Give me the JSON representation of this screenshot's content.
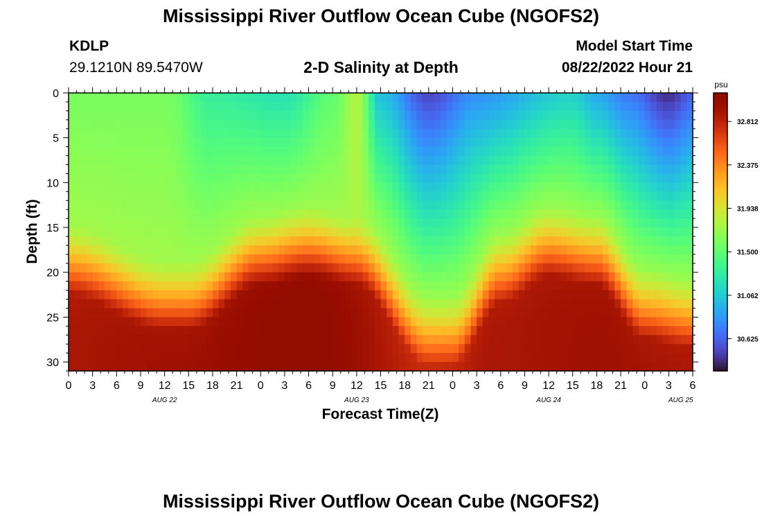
{
  "header": {
    "title": "Mississippi River Outflow Ocean Cube (NGOFS2)",
    "station": "KDLP",
    "coords": "29.1210N  89.5470W",
    "subtitle": "2-D Salinity at Depth",
    "model_start_label": "Model Start Time",
    "model_start_value": "08/22/2022 Hour 21"
  },
  "footer": {
    "title": "Mississippi River Outflow Ocean Cube (NGOFS2)"
  },
  "chart_data": {
    "type": "heatmap",
    "title": "2-D Salinity at Depth",
    "xlabel": "Forecast Time(Z)",
    "ylabel": "Depth (ft)",
    "x_tick_labels": [
      "0",
      "3",
      "6",
      "9",
      "12",
      "15",
      "18",
      "21",
      "0",
      "3",
      "6",
      "9",
      "12",
      "15",
      "18",
      "21",
      "0",
      "3",
      "6",
      "9",
      "12",
      "15",
      "18",
      "21",
      "0",
      "3",
      "6"
    ],
    "x_range_hours": [
      0,
      78
    ],
    "date_labels": [
      {
        "label": "AUG 22",
        "hour": 12
      },
      {
        "label": "AUG 23",
        "hour": 36
      },
      {
        "label": "AUG 24",
        "hour": 60
      },
      {
        "label": "AUG 25",
        "hour": 76.5
      }
    ],
    "y_ticks": [
      0,
      5,
      10,
      15,
      20,
      25,
      30
    ],
    "y_range": [
      0,
      31
    ],
    "y_inverted": true,
    "colorbar": {
      "unit": "psu",
      "range": [
        30.3,
        33.1
      ],
      "tick_values": [
        32.812,
        32.375,
        31.938,
        31.5,
        31.062,
        30.625
      ],
      "tick_labels": [
        "32.812",
        "32.375",
        "31.938",
        "31.500",
        "31.062",
        "30.625"
      ],
      "colormap": "turbo"
    },
    "salinity_field": {
      "description": "salinity (psu) at depth, sampled as key levels; interpolated in the figure",
      "surface_layer_psu": [
        {
          "hour": 0,
          "value": 31.6
        },
        {
          "hour": 12,
          "value": 31.6
        },
        {
          "hour": 18,
          "value": 31.3
        },
        {
          "hour": 27,
          "value": 31.2
        },
        {
          "hour": 33,
          "value": 31.5
        },
        {
          "hour": 36,
          "value": 31.8
        },
        {
          "hour": 39,
          "value": 31.0
        },
        {
          "hour": 45,
          "value": 30.5
        },
        {
          "hour": 51,
          "value": 30.8
        },
        {
          "hour": 63,
          "value": 31.1
        },
        {
          "hour": 66,
          "value": 30.9
        },
        {
          "hour": 70,
          "value": 30.7
        },
        {
          "hour": 75,
          "value": 30.4
        },
        {
          "hour": 78,
          "value": 30.6
        }
      ],
      "halocline_depth_ft": [
        {
          "hour": 0,
          "value": 16
        },
        {
          "hour": 12,
          "value": 20
        },
        {
          "hour": 15,
          "value": 20
        },
        {
          "hour": 24,
          "value": 15
        },
        {
          "hour": 30,
          "value": 14
        },
        {
          "hour": 36,
          "value": 15
        },
        {
          "hour": 45,
          "value": 24
        },
        {
          "hour": 48,
          "value": 24
        },
        {
          "hour": 54,
          "value": 17
        },
        {
          "hour": 60,
          "value": 14
        },
        {
          "hour": 66,
          "value": 15
        },
        {
          "hour": 72,
          "value": 21
        },
        {
          "hour": 78,
          "value": 22
        }
      ],
      "bottom_psu": [
        {
          "hour": 0,
          "value": 32.9
        },
        {
          "hour": 12,
          "value": 32.95
        },
        {
          "hour": 30,
          "value": 33.05
        },
        {
          "hour": 45,
          "value": 32.8
        },
        {
          "hour": 54,
          "value": 32.9
        },
        {
          "hour": 66,
          "value": 32.95
        },
        {
          "hour": 78,
          "value": 32.9
        }
      ]
    }
  }
}
